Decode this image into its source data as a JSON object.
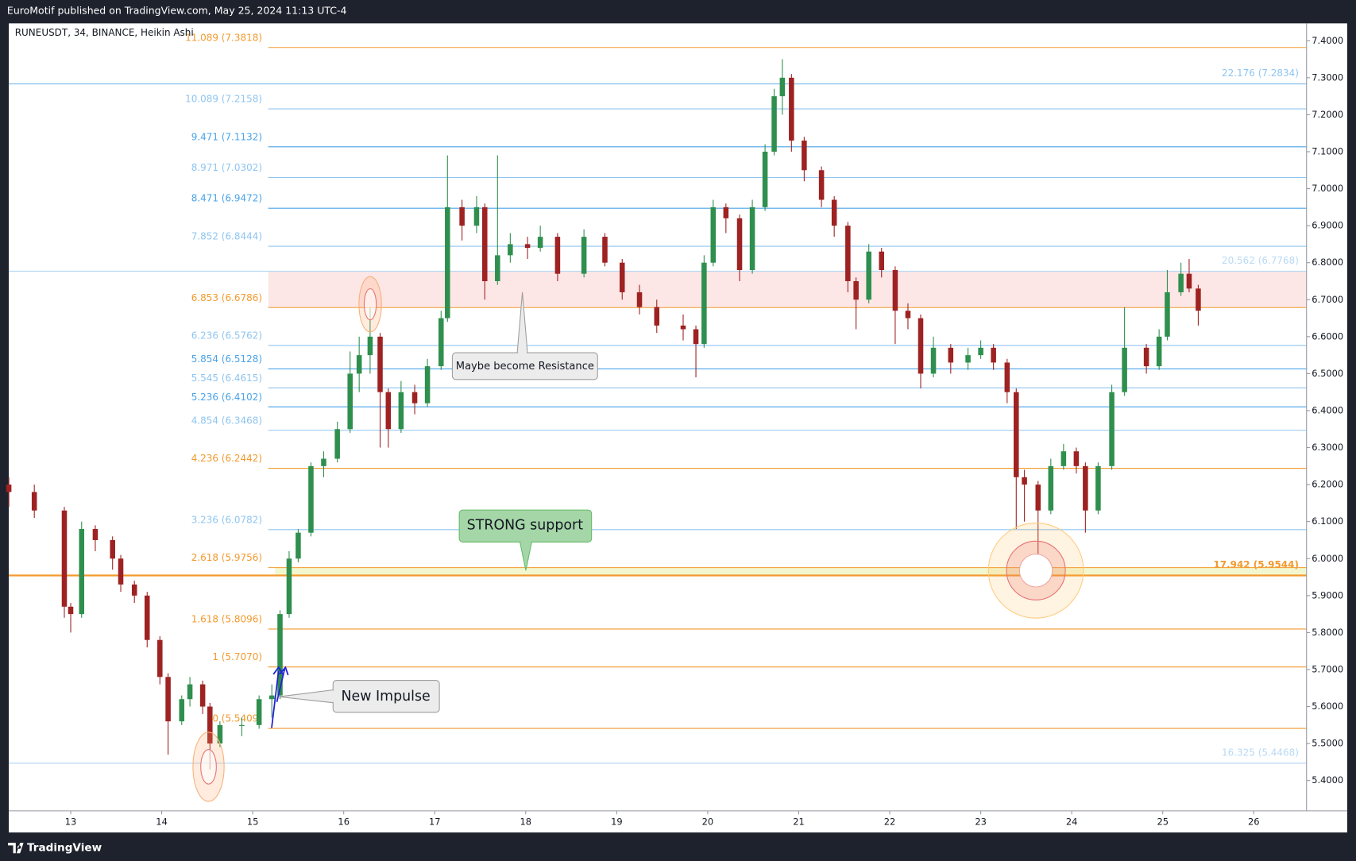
{
  "header": {
    "text": "EuroMotif published on TradingView.com, May 25, 2024 11:13 UTC-4"
  },
  "footer": {
    "brand": "TradingView"
  },
  "chart_data": {
    "type": "candlestick",
    "title": "RUNEUSDT, 34, BINANCE, Heikin Ashi",
    "up_color": "#2f8f4e",
    "down_color": "#9e2222",
    "xlim": [
      12.32,
      26.58
    ],
    "xticks": [
      13,
      14,
      15,
      16,
      17,
      18,
      19,
      20,
      21,
      22,
      23,
      24,
      25,
      26
    ],
    "ylim": [
      5.318,
      7.447
    ],
    "yticks": [
      {
        "value": 5.4,
        "label": "5.4000"
      },
      {
        "value": 5.5,
        "label": "5.5000"
      },
      {
        "value": 5.6,
        "label": "5.6000"
      },
      {
        "value": 5.7,
        "label": "5.7000"
      },
      {
        "value": 5.8,
        "label": "5.8000"
      },
      {
        "value": 5.9,
        "label": "5.9000"
      },
      {
        "value": 6.0,
        "label": "6.0000"
      },
      {
        "value": 6.1,
        "label": "6.1000"
      },
      {
        "value": 6.2,
        "label": "6.2000"
      },
      {
        "value": 6.3,
        "label": "6.3000"
      },
      {
        "value": 6.4,
        "label": "6.4000"
      },
      {
        "value": 6.5,
        "label": "6.5000"
      },
      {
        "value": 6.6,
        "label": "6.6000"
      },
      {
        "value": 6.7,
        "label": "6.7000"
      },
      {
        "value": 6.8,
        "label": "6.8000"
      },
      {
        "value": 6.9,
        "label": "6.9000"
      },
      {
        "value": 7.0,
        "label": "7.0000"
      },
      {
        "value": 7.1,
        "label": "7.1000"
      },
      {
        "value": 7.2,
        "label": "7.2000"
      },
      {
        "value": 7.3,
        "label": "7.3000"
      },
      {
        "value": 7.4,
        "label": "7.4000"
      }
    ],
    "grid": false,
    "x": [
      12.32,
      12.6,
      12.93,
      13.0,
      13.12,
      13.27,
      13.46,
      13.55,
      13.7,
      13.84,
      13.98,
      14.07,
      14.22,
      14.31,
      14.45,
      14.53,
      14.64,
      14.88,
      15.07,
      15.21,
      15.3,
      15.4,
      15.5,
      15.64,
      15.78,
      15.93,
      16.07,
      16.17,
      16.29,
      16.4,
      16.49,
      16.63,
      16.78,
      16.92,
      17.07,
      17.14,
      17.3,
      17.46,
      17.55,
      17.69,
      17.83,
      18.02,
      18.16,
      18.35,
      18.64,
      18.87,
      19.06,
      19.25,
      19.44,
      19.73,
      19.87,
      19.96,
      20.06,
      20.2,
      20.35,
      20.49,
      20.63,
      20.73,
      20.82,
      20.92,
      21.06,
      21.25,
      21.39,
      21.54,
      21.63,
      21.77,
      21.91,
      22.06,
      22.2,
      22.34,
      22.48,
      22.67,
      22.86,
      23.0,
      23.14,
      23.29,
      23.39,
      23.48,
      23.63,
      23.77,
      23.91,
      24.05,
      24.15,
      24.29,
      24.44,
      24.58,
      24.82,
      24.96,
      25.05,
      25.2,
      25.29,
      25.39
    ],
    "open": [
      6.2,
      6.18,
      6.13,
      5.87,
      5.85,
      6.08,
      6.05,
      6.0,
      5.93,
      5.9,
      5.78,
      5.68,
      5.56,
      5.62,
      5.66,
      5.6,
      5.5,
      5.55,
      5.55,
      5.62,
      5.63,
      5.85,
      6.0,
      6.07,
      6.25,
      6.27,
      6.35,
      6.5,
      6.55,
      6.6,
      6.45,
      6.35,
      6.45,
      6.42,
      6.52,
      6.65,
      6.95,
      6.9,
      6.95,
      6.75,
      6.82,
      6.85,
      6.84,
      6.87,
      6.77,
      6.87,
      6.8,
      6.72,
      6.68,
      6.63,
      6.62,
      6.58,
      6.8,
      6.95,
      6.92,
      6.78,
      6.95,
      7.1,
      7.25,
      7.3,
      7.13,
      7.05,
      6.97,
      6.9,
      6.75,
      6.7,
      6.83,
      6.78,
      6.67,
      6.65,
      6.5,
      6.57,
      6.53,
      6.55,
      6.57,
      6.53,
      6.45,
      6.22,
      6.2,
      6.13,
      6.25,
      6.29,
      6.25,
      6.13,
      6.25,
      6.45,
      6.57,
      6.52,
      6.6,
      6.72,
      6.77,
      6.73
    ],
    "high": [
      6.22,
      6.2,
      6.14,
      5.88,
      6.1,
      6.09,
      6.06,
      6.01,
      5.94,
      5.91,
      5.79,
      5.69,
      5.63,
      5.68,
      5.67,
      5.61,
      5.56,
      5.57,
      5.63,
      5.66,
      5.86,
      6.02,
      6.08,
      6.26,
      6.29,
      6.37,
      6.56,
      6.6,
      6.68,
      6.61,
      6.46,
      6.48,
      6.47,
      6.54,
      6.67,
      7.09,
      6.97,
      6.98,
      6.96,
      7.09,
      6.88,
      6.87,
      6.9,
      6.88,
      6.89,
      6.88,
      6.81,
      6.74,
      6.7,
      6.66,
      6.63,
      6.82,
      6.97,
      6.96,
      6.93,
      6.97,
      7.12,
      7.27,
      7.35,
      7.31,
      7.14,
      7.06,
      6.98,
      6.91,
      6.76,
      6.85,
      6.84,
      6.79,
      6.69,
      6.66,
      6.6,
      6.58,
      6.57,
      6.59,
      6.58,
      6.54,
      6.46,
      6.24,
      6.21,
      6.27,
      6.31,
      6.3,
      6.26,
      6.26,
      6.47,
      6.68,
      6.58,
      6.62,
      6.78,
      6.8,
      6.81,
      6.74
    ],
    "low": [
      6.14,
      6.11,
      5.84,
      5.8,
      5.84,
      6.02,
      5.97,
      5.91,
      5.88,
      5.76,
      5.66,
      5.47,
      5.55,
      5.6,
      5.58,
      5.43,
      5.49,
      5.52,
      5.54,
      5.57,
      5.62,
      5.84,
      5.99,
      6.06,
      6.22,
      6.26,
      6.34,
      6.45,
      6.5,
      6.3,
      6.3,
      6.34,
      6.39,
      6.41,
      6.51,
      6.64,
      6.86,
      6.88,
      6.7,
      6.74,
      6.8,
      6.81,
      6.83,
      6.75,
      6.76,
      6.79,
      6.7,
      6.66,
      6.61,
      6.59,
      6.49,
      6.57,
      6.79,
      6.88,
      6.75,
      6.77,
      6.94,
      7.09,
      7.2,
      7.1,
      7.02,
      6.95,
      6.87,
      6.72,
      6.62,
      6.69,
      6.76,
      6.58,
      6.62,
      6.46,
      6.49,
      6.5,
      6.51,
      6.54,
      6.51,
      6.42,
      6.08,
      6.1,
      5.95,
      6.12,
      6.24,
      6.23,
      6.07,
      6.12,
      6.24,
      6.44,
      6.5,
      6.51,
      6.59,
      6.71,
      6.72,
      6.63
    ],
    "close": [
      6.18,
      6.13,
      5.87,
      5.85,
      6.08,
      6.05,
      6.0,
      5.93,
      5.9,
      5.78,
      5.68,
      5.56,
      5.62,
      5.66,
      5.6,
      5.5,
      5.55,
      5.55,
      5.62,
      5.63,
      5.85,
      6.0,
      6.07,
      6.25,
      6.27,
      6.35,
      6.5,
      6.55,
      6.6,
      6.45,
      6.35,
      6.45,
      6.42,
      6.52,
      6.65,
      6.95,
      6.9,
      6.95,
      6.75,
      6.82,
      6.85,
      6.84,
      6.87,
      6.77,
      6.87,
      6.8,
      6.72,
      6.68,
      6.63,
      6.62,
      6.58,
      6.8,
      6.95,
      6.92,
      6.78,
      6.95,
      7.1,
      7.25,
      7.3,
      7.13,
      7.05,
      6.97,
      6.9,
      6.75,
      6.7,
      6.83,
      6.78,
      6.67,
      6.65,
      6.5,
      6.57,
      6.53,
      6.55,
      6.57,
      6.53,
      6.45,
      6.22,
      6.2,
      6.13,
      6.25,
      6.29,
      6.25,
      6.13,
      6.25,
      6.45,
      6.57,
      6.52,
      6.6,
      6.72,
      6.77,
      6.73,
      6.67
    ],
    "fib_levels": [
      {
        "label": "11.089 (7.3818)",
        "value": 7.3818,
        "color": "#f29a2e"
      },
      {
        "label": "10.089 (7.2158)",
        "value": 7.2158,
        "color": "#8fc5f0"
      },
      {
        "label": "9.471 (7.1132)",
        "value": 7.1132,
        "color": "#4aa3e8"
      },
      {
        "label": "8.971 (7.0302)",
        "value": 7.0302,
        "color": "#8fc5f0"
      },
      {
        "label": "8.471 (6.9472)",
        "value": 6.9472,
        "color": "#4aa3e8"
      },
      {
        "label": "7.852 (6.8444)",
        "value": 6.8444,
        "color": "#8fc5f0"
      },
      {
        "label": "6.853 (6.6786)",
        "value": 6.6786,
        "color": "#f29a2e"
      },
      {
        "label": "6.236 (6.5762)",
        "value": 6.5762,
        "color": "#8fc5f0"
      },
      {
        "label": "5.854 (6.5128)",
        "value": 6.5128,
        "color": "#4aa3e8"
      },
      {
        "label": "5.545 (6.4615)",
        "value": 6.4615,
        "color": "#8fc5f0"
      },
      {
        "label": "5.236 (6.4102)",
        "value": 6.4102,
        "color": "#4aa3e8"
      },
      {
        "label": "4.854 (6.3468)",
        "value": 6.3468,
        "color": "#8fc5f0"
      },
      {
        "label": "4.236 (6.2442)",
        "value": 6.2442,
        "color": "#f29a2e"
      },
      {
        "label": "3.236 (6.0782)",
        "value": 6.0782,
        "color": "#8fc5f0"
      },
      {
        "label": "2.618 (5.9756)",
        "value": 5.9756,
        "color": "#f29a2e"
      },
      {
        "label": "1.618 (5.8096)",
        "value": 5.8096,
        "color": "#f29a2e"
      },
      {
        "label": "1 (5.7070)",
        "value": 5.707,
        "color": "#f29a2e"
      },
      {
        "label": "0 (5.5409)",
        "value": 5.5409,
        "color": "#f29a2e"
      }
    ],
    "right_levels": [
      {
        "label": "22.176 (7.2834)",
        "value": 7.2834,
        "color": "#8fc5f0"
      },
      {
        "label": "20.562 (6.7768)",
        "value": 6.7768,
        "color": "#b8d9f4"
      },
      {
        "label": "17.942 (5.9544)",
        "value": 5.9544,
        "color": "#f29a2e"
      },
      {
        "label": "16.325 (5.4468)",
        "value": 5.4468,
        "color": "#b8d9f4"
      }
    ],
    "annotations": [
      "Maybe become Resistance",
      "STRONG support",
      "New Impulse"
    ]
  }
}
